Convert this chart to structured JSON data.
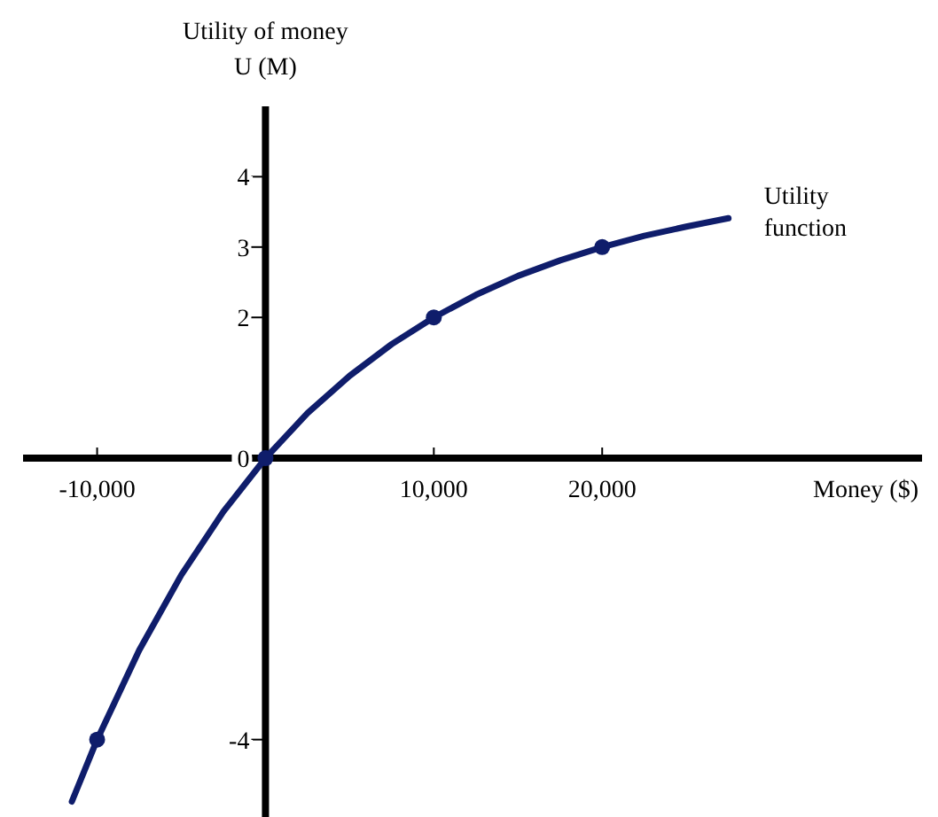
{
  "chart_data": {
    "type": "line",
    "xlabel": "Money ($)",
    "ylabel": "Utility of money\nU (M)",
    "xlim": [
      -14400,
      39000
    ],
    "ylim": [
      -5.1,
      5
    ],
    "xticks": [
      {
        "value": -10000,
        "label": "-10,000"
      },
      {
        "value": 10000,
        "label": "10,000"
      },
      {
        "value": 20000,
        "label": "20,000"
      }
    ],
    "yticks": [
      -4,
      0,
      2,
      3,
      4
    ],
    "grid": false,
    "series": [
      {
        "color": "#0f1d6b",
        "marker": "none",
        "x": [
          -11500,
          -10000,
          -7500,
          -5000,
          -2500,
          0,
          2500,
          5000,
          7500,
          10000,
          12500,
          15000,
          17500,
          20000,
          22500,
          25000,
          27500
        ],
        "values": [
          -4.88,
          -4,
          -2.73,
          -1.66,
          -0.76,
          0,
          0.64,
          1.17,
          1.62,
          2,
          2.32,
          2.59,
          2.81,
          3,
          3.16,
          3.29,
          3.41
        ]
      },
      {
        "type": "scatter",
        "color": "#0f1d6b",
        "marker": "circle",
        "x": [
          -10000,
          0,
          10000,
          20000
        ],
        "values": [
          -4,
          0,
          2,
          3
        ]
      }
    ],
    "annotations": [
      {
        "text": "Utility\nfunction",
        "x": 27500,
        "y": 3.41
      }
    ]
  }
}
